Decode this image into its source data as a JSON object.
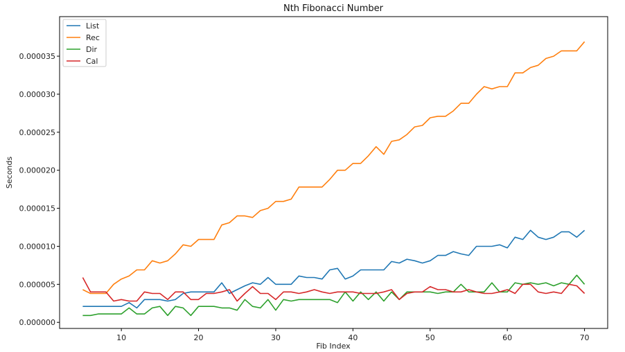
{
  "chart_data": {
    "type": "line",
    "title": "Nth Fibonacci Number",
    "xlabel": "Fib Index",
    "ylabel": "Seconds",
    "xlim": [
      2,
      73
    ],
    "ylim": [
      -8e-07,
      4.02e-05
    ],
    "xticks": [
      10,
      20,
      30,
      40,
      50,
      60,
      70
    ],
    "xtick_labels": [
      "10",
      "20",
      "30",
      "40",
      "50",
      "60",
      "70"
    ],
    "yticks": [
      0,
      5e-06,
      1e-05,
      1.5e-05,
      2e-05,
      2.5e-05,
      3e-05,
      3.5e-05
    ],
    "ytick_labels": [
      "0.000000",
      "0.000005",
      "0.000010",
      "0.000015",
      "0.000020",
      "0.000025",
      "0.000030",
      "0.000035"
    ],
    "grid": false,
    "legend_position": "top-left",
    "x": [
      5,
      6,
      7,
      8,
      9,
      10,
      11,
      12,
      13,
      14,
      15,
      16,
      17,
      18,
      19,
      20,
      21,
      22,
      23,
      24,
      25,
      26,
      27,
      28,
      29,
      30,
      31,
      32,
      33,
      34,
      35,
      36,
      37,
      38,
      39,
      40,
      41,
      42,
      43,
      44,
      45,
      46,
      47,
      48,
      49,
      50,
      51,
      52,
      53,
      54,
      55,
      56,
      57,
      58,
      59,
      60,
      61,
      62,
      63,
      64,
      65,
      66,
      67,
      68,
      69,
      70
    ],
    "series": [
      {
        "name": "List",
        "color": "#1f77b4",
        "values": [
          2.1e-06,
          2.1e-06,
          2.1e-06,
          2.1e-06,
          2.1e-06,
          2.1e-06,
          2.6e-06,
          1.9e-06,
          3e-06,
          3e-06,
          3e-06,
          2.8e-06,
          3e-06,
          3.8e-06,
          4e-06,
          4e-06,
          4e-06,
          4e-06,
          5.2e-06,
          3.8e-06,
          4.3e-06,
          4.8e-06,
          5.2e-06,
          5e-06,
          5.9e-06,
          5e-06,
          5e-06,
          5e-06,
          6.1e-06,
          5.9e-06,
          5.9e-06,
          5.7e-06,
          6.9e-06,
          7.1e-06,
          5.7e-06,
          6.1e-06,
          6.9e-06,
          6.9e-06,
          6.9e-06,
          6.9e-06,
          8e-06,
          7.8e-06,
          8.3e-06,
          8.1e-06,
          7.8e-06,
          8.1e-06,
          8.8e-06,
          8.8e-06,
          9.3e-06,
          9e-06,
          8.8e-06,
          1e-05,
          1e-05,
          1e-05,
          1.02e-05,
          9.8e-06,
          1.12e-05,
          1.09e-05,
          1.21e-05,
          1.12e-05,
          1.09e-05,
          1.12e-05,
          1.19e-05,
          1.19e-05,
          1.12e-05,
          1.21e-05
        ]
      },
      {
        "name": "Rec",
        "color": "#ff7f0e",
        "values": [
          4.3e-06,
          3.8e-06,
          3.8e-06,
          3.8e-06,
          5e-06,
          5.7e-06,
          6.1e-06,
          6.9e-06,
          6.9e-06,
          8.1e-06,
          7.8e-06,
          8.1e-06,
          9e-06,
          1.02e-05,
          1e-05,
          1.09e-05,
          1.09e-05,
          1.09e-05,
          1.28e-05,
          1.31e-05,
          1.4e-05,
          1.4e-05,
          1.38e-05,
          1.47e-05,
          1.5e-05,
          1.59e-05,
          1.59e-05,
          1.62e-05,
          1.78e-05,
          1.78e-05,
          1.78e-05,
          1.78e-05,
          1.88e-05,
          2e-05,
          2e-05,
          2.09e-05,
          2.09e-05,
          2.19e-05,
          2.31e-05,
          2.21e-05,
          2.38e-05,
          2.4e-05,
          2.47e-05,
          2.57e-05,
          2.59e-05,
          2.69e-05,
          2.71e-05,
          2.71e-05,
          2.78e-05,
          2.88e-05,
          2.88e-05,
          3e-05,
          3.1e-05,
          3.07e-05,
          3.1e-05,
          3.1e-05,
          3.28e-05,
          3.28e-05,
          3.35e-05,
          3.38e-05,
          3.47e-05,
          3.5e-05,
          3.57e-05,
          3.57e-05,
          3.57e-05,
          3.69e-05
        ]
      },
      {
        "name": "Dir",
        "color": "#2ca02c",
        "values": [
          9e-07,
          9e-07,
          1.1e-06,
          1.1e-06,
          1.1e-06,
          1.1e-06,
          1.9e-06,
          1.1e-06,
          1.1e-06,
          1.9e-06,
          2.1e-06,
          9e-07,
          2.1e-06,
          1.9e-06,
          9e-07,
          2.1e-06,
          2.1e-06,
          2.1e-06,
          1.9e-06,
          1.9e-06,
          1.6e-06,
          3e-06,
          2.1e-06,
          1.9e-06,
          3e-06,
          1.6e-06,
          3e-06,
          2.8e-06,
          3e-06,
          3e-06,
          3e-06,
          3e-06,
          3e-06,
          2.6e-06,
          4e-06,
          2.8e-06,
          4e-06,
          3e-06,
          4e-06,
          2.8e-06,
          4e-06,
          3e-06,
          4e-06,
          4e-06,
          4e-06,
          4e-06,
          3.8e-06,
          4e-06,
          4e-06,
          5e-06,
          4e-06,
          4e-06,
          4e-06,
          5.2e-06,
          4e-06,
          4e-06,
          5.2e-06,
          5e-06,
          5.2e-06,
          5e-06,
          5.2e-06,
          4.8e-06,
          5.2e-06,
          5e-06,
          6.2e-06,
          5e-06
        ]
      },
      {
        "name": "Cal",
        "color": "#d62728",
        "values": [
          5.9e-06,
          4e-06,
          4e-06,
          4e-06,
          2.8e-06,
          3e-06,
          2.8e-06,
          2.8e-06,
          4e-06,
          3.8e-06,
          3.8e-06,
          3e-06,
          4e-06,
          4e-06,
          3e-06,
          3e-06,
          3.8e-06,
          3.8e-06,
          4e-06,
          4.3e-06,
          2.8e-06,
          3.8e-06,
          4.7e-06,
          3.8e-06,
          3.8e-06,
          3e-06,
          4e-06,
          4e-06,
          3.8e-06,
          4e-06,
          4.3e-06,
          4e-06,
          3.8e-06,
          4e-06,
          4e-06,
          4e-06,
          3.8e-06,
          3.8e-06,
          3.8e-06,
          4e-06,
          4.3e-06,
          3e-06,
          3.8e-06,
          4e-06,
          4e-06,
          4.7e-06,
          4.3e-06,
          4.3e-06,
          4e-06,
          4e-06,
          4.3e-06,
          4e-06,
          3.8e-06,
          3.8e-06,
          4e-06,
          4.3e-06,
          3.8e-06,
          5e-06,
          5e-06,
          4e-06,
          3.8e-06,
          4e-06,
          3.8e-06,
          5e-06,
          4.8e-06,
          3.8e-06
        ]
      }
    ]
  }
}
